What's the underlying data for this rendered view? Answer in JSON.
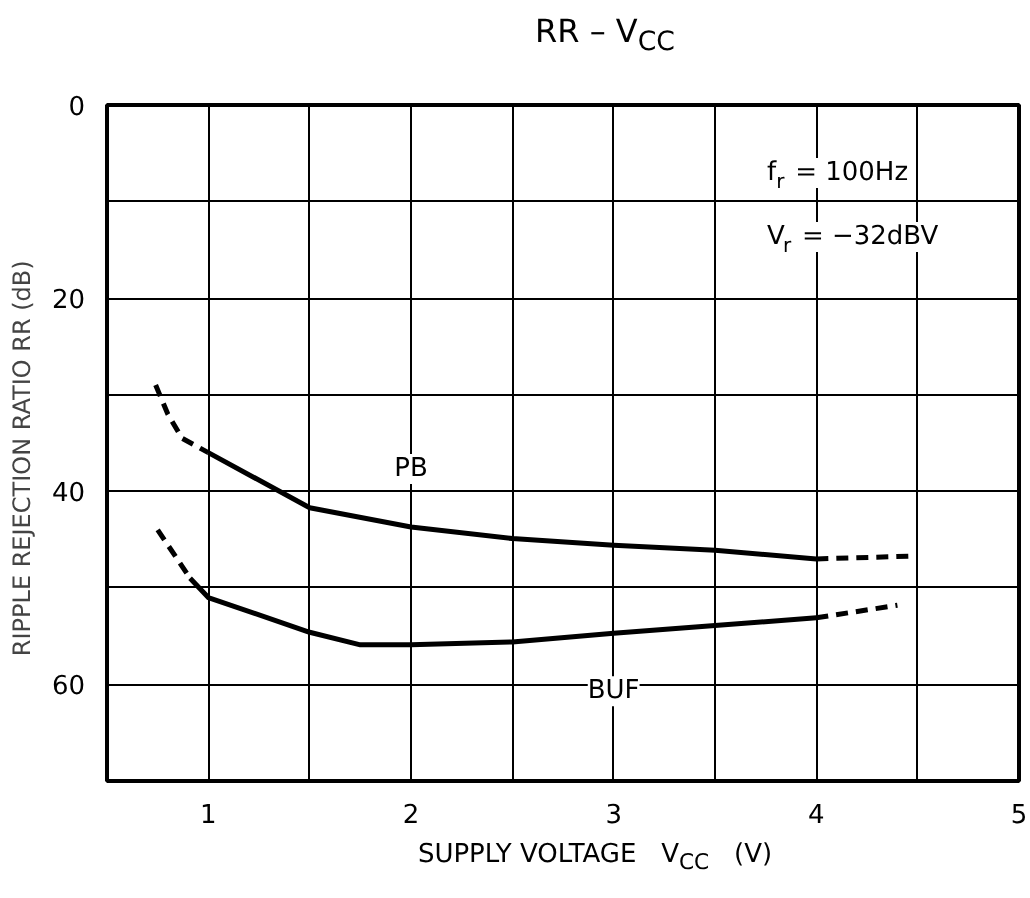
{
  "chart_data": {
    "type": "line",
    "title": "RR – V$_{CC}$",
    "xlabel": "SUPPLY VOLTAGE   V$_{CC}$   (V)",
    "ylabel": "RIPPLE REJECTION RATIO   RR   (dB)",
    "annotations": [
      "f$_{r}$ = 100Hz",
      "V$_{r}$ = −32dBV"
    ],
    "xlim": [
      0.5,
      5
    ],
    "ylim": [
      70,
      0
    ],
    "xticks": [
      1,
      {
        "value": 1.5,
        "label": null
      },
      2,
      {
        "value": 2.5,
        "label": null
      },
      3,
      {
        "value": 3.5,
        "label": null
      },
      4,
      {
        "value": 4.5,
        "label": null
      },
      5
    ],
    "yticks": [
      0,
      {
        "value": 10,
        "label": null
      },
      20,
      {
        "value": 30,
        "label": null
      },
      40,
      {
        "value": 50,
        "label": null
      },
      60
    ],
    "grid": true,
    "line_style": "solid",
    "series": [
      {
        "name": "PB",
        "color": "#000000",
        "x": [
          1,
          1.5,
          2,
          2.5,
          3,
          3.5,
          4
        ],
        "values": [
          36,
          41.7,
          43.7,
          44.9,
          45.6,
          46.1,
          47.0
        ]
      },
      {
        "color": "#000000",
        "line_style": "dashed",
        "x": [
          0.74,
          0.8,
          0.87,
          1
        ],
        "values": [
          29,
          32,
          34.5,
          36
        ]
      },
      {
        "color": "#000000",
        "line_style": "dashed",
        "x": [
          4,
          4.5
        ],
        "values": [
          47.0,
          46.7
        ]
      },
      {
        "name": "BUF",
        "color": "#000000",
        "x": [
          0.91,
          1,
          1.5,
          1.75,
          2,
          2.5,
          3,
          3.5,
          4
        ],
        "values": [
          49.0,
          51.0,
          54.6,
          55.9,
          55.9,
          55.6,
          54.7,
          53.9,
          53.1
        ]
      },
      {
        "color": "#000000",
        "line_style": "dashed",
        "x": [
          0.75,
          0.91
        ],
        "values": [
          44.0,
          49.0
        ]
      },
      {
        "color": "#000000",
        "line_style": "dashed",
        "x": [
          4,
          4.4
        ],
        "values": [
          53.1,
          51.8
        ]
      }
    ]
  }
}
